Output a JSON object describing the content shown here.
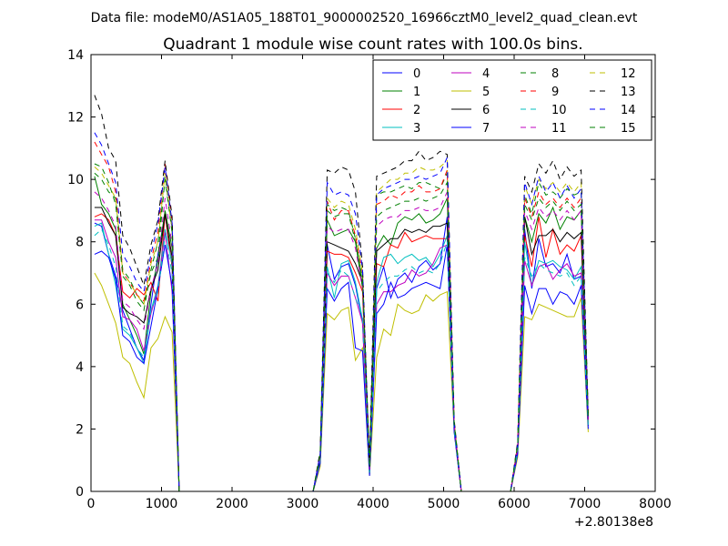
{
  "figure": {
    "suptitle": "Data file: modeM0/AS1A05_188T01_9000002520_16966cztM0_level2_quad_clean.evt"
  },
  "chart_data": {
    "type": "line",
    "title": "Quadrant 1 module wise count rates with 100.0s bins.",
    "xlabel": "",
    "ylabel": "",
    "x_offset_label": "+2.80138e8",
    "xlim": [
      0,
      8000
    ],
    "ylim": [
      0,
      14
    ],
    "x_ticks": [
      0,
      1000,
      2000,
      3000,
      4000,
      5000,
      6000,
      7000,
      8000
    ],
    "y_ticks": [
      0,
      2,
      4,
      6,
      8,
      10,
      12,
      14
    ],
    "grid": false,
    "legend_position": "top-right",
    "legend_columns": 4,
    "x": [
      50,
      150,
      250,
      350,
      450,
      550,
      650,
      750,
      850,
      950,
      1050,
      1150,
      1250,
      1350,
      1450,
      1550,
      1650,
      1750,
      1850,
      1950,
      2050,
      2150,
      2250,
      2350,
      2450,
      2550,
      2650,
      2750,
      2850,
      2950,
      3050,
      3150,
      3250,
      3350,
      3450,
      3550,
      3650,
      3750,
      3850,
      3950,
      4050,
      4150,
      4250,
      4350,
      4450,
      4550,
      4650,
      4750,
      4850,
      4950,
      5050,
      5150,
      5250,
      5350,
      5450,
      5550,
      5650,
      5750,
      5850,
      5950,
      6050,
      6150,
      6250,
      6350,
      6450,
      6550,
      6650,
      6750,
      6850,
      6950,
      7050
    ],
    "series": [
      {
        "name": "0",
        "color": "#0000ff",
        "dash": "solid",
        "values": [
          8.6,
          8.5,
          7.6,
          6.9,
          5.8,
          5.2,
          4.6,
          4.2,
          6.0,
          7.6,
          8.9,
          7.2,
          0,
          0,
          0,
          0,
          0,
          0,
          0,
          0,
          0,
          0,
          0,
          0,
          0,
          0,
          0,
          0,
          0,
          0,
          0,
          0,
          1.0,
          7.9,
          6.8,
          7.2,
          7.3,
          6.6,
          5.4,
          0.6,
          6.5,
          7.2,
          6.2,
          6.8,
          7.0,
          6.7,
          7.2,
          7.4,
          7.1,
          7.3,
          8.8,
          2.0,
          0,
          0,
          0,
          0,
          0,
          0,
          0,
          0,
          1.3,
          8.4,
          6.5,
          8.1,
          7.2,
          7.3,
          7.0,
          7.6,
          6.8,
          6.9,
          2.3
        ]
      },
      {
        "name": "1",
        "color": "#008000",
        "dash": "solid",
        "values": [
          10.1,
          9.2,
          8.9,
          8.4,
          6.0,
          5.5,
          5.0,
          4.4,
          6.4,
          7.4,
          9.0,
          7.8,
          0,
          0,
          0,
          0,
          0,
          0,
          0,
          0,
          0,
          0,
          0,
          0,
          0,
          0,
          0,
          0,
          0,
          0,
          0,
          0,
          1.1,
          8.7,
          8.2,
          8.3,
          8.4,
          8.0,
          6.5,
          0.7,
          7.8,
          8.2,
          7.9,
          8.6,
          8.8,
          8.7,
          8.9,
          8.6,
          8.7,
          8.9,
          9.4,
          2.1,
          0,
          0,
          0,
          0,
          0,
          0,
          0,
          0,
          1.4,
          8.8,
          8.0,
          8.9,
          8.6,
          9.1,
          8.4,
          8.8,
          8.7,
          9.0,
          2.3
        ]
      },
      {
        "name": "2",
        "color": "#ff0000",
        "dash": "solid",
        "values": [
          8.8,
          8.9,
          8.7,
          8.2,
          6.4,
          6.2,
          6.5,
          6.3,
          6.7,
          6.1,
          8.9,
          7.2,
          0,
          0,
          0,
          0,
          0,
          0,
          0,
          0,
          0,
          0,
          0,
          0,
          0,
          0,
          0,
          0,
          0,
          0,
          0,
          0,
          1.0,
          7.7,
          7.6,
          7.6,
          7.5,
          7.0,
          6.4,
          0.7,
          7.3,
          7.2,
          7.9,
          7.8,
          8.3,
          8.0,
          8.1,
          8.2,
          8.1,
          8.1,
          8.1,
          2.0,
          0,
          0,
          0,
          0,
          0,
          0,
          0,
          0,
          1.3,
          8.2,
          7.2,
          8.8,
          7.5,
          8.4,
          7.6,
          7.9,
          7.7,
          8.2,
          2.2
        ]
      },
      {
        "name": "3",
        "color": "#00bfbf",
        "dash": "solid",
        "values": [
          8.5,
          8.6,
          7.6,
          6.6,
          5.2,
          5.0,
          4.6,
          4.1,
          5.8,
          6.6,
          8.4,
          7.3,
          0,
          0,
          0,
          0,
          0,
          0,
          0,
          0,
          0,
          0,
          0,
          0,
          0,
          0,
          0,
          0,
          0,
          0,
          0,
          0,
          1.0,
          7.2,
          6.2,
          7.3,
          7.4,
          6.7,
          5.5,
          0.6,
          6.7,
          7.5,
          7.6,
          7.3,
          7.5,
          7.6,
          7.4,
          7.5,
          7.2,
          7.6,
          8.2,
          2.0,
          0,
          0,
          0,
          0,
          0,
          0,
          0,
          0,
          1.3,
          8.0,
          6.6,
          7.4,
          7.3,
          7.4,
          7.2,
          7.1,
          6.8,
          7.2,
          2.1
        ]
      },
      {
        "name": "4",
        "color": "#bf00bf",
        "dash": "solid",
        "values": [
          8.7,
          8.7,
          8.0,
          7.5,
          5.6,
          5.5,
          5.2,
          4.5,
          5.7,
          6.5,
          8.3,
          6.4,
          0,
          0,
          0,
          0,
          0,
          0,
          0,
          0,
          0,
          0,
          0,
          0,
          0,
          0,
          0,
          0,
          0,
          0,
          0,
          0,
          0.9,
          7.0,
          6.6,
          6.9,
          6.9,
          6.2,
          5.4,
          0.6,
          6.0,
          6.4,
          6.4,
          6.6,
          6.7,
          7.1,
          6.9,
          7.0,
          7.3,
          7.8,
          7.9,
          2.0,
          0,
          0,
          0,
          0,
          0,
          0,
          0,
          0,
          1.2,
          7.4,
          6.6,
          7.2,
          7.3,
          6.8,
          7.1,
          7.3,
          6.9,
          7.0,
          2.1
        ]
      },
      {
        "name": "5",
        "color": "#bfbf00",
        "dash": "solid",
        "values": [
          7.0,
          6.6,
          6.0,
          5.4,
          4.3,
          4.1,
          3.5,
          3.0,
          4.6,
          4.9,
          5.6,
          5.1,
          0,
          0,
          0,
          0,
          0,
          0,
          0,
          0,
          0,
          0,
          0,
          0,
          0,
          0,
          0,
          0,
          0,
          0,
          0,
          0,
          0.8,
          5.7,
          5.5,
          5.8,
          5.9,
          4.2,
          4.6,
          0.5,
          4.3,
          5.2,
          5.0,
          6.0,
          5.8,
          5.7,
          5.8,
          6.3,
          6.1,
          6.3,
          6.4,
          1.9,
          0,
          0,
          0,
          0,
          0,
          0,
          0,
          0,
          1.1,
          5.6,
          5.5,
          6.0,
          5.9,
          5.8,
          5.7,
          5.6,
          5.6,
          6.2,
          1.9
        ]
      },
      {
        "name": "6",
        "color": "#000000",
        "dash": "solid",
        "values": [
          9.1,
          9.1,
          8.6,
          8.2,
          5.9,
          5.7,
          5.6,
          5.4,
          6.5,
          7.1,
          8.9,
          7.5,
          0,
          0,
          0,
          0,
          0,
          0,
          0,
          0,
          0,
          0,
          0,
          0,
          0,
          0,
          0,
          0,
          0,
          0,
          0,
          0,
          1.1,
          8.0,
          7.9,
          7.8,
          7.7,
          7.3,
          6.7,
          0.8,
          7.7,
          7.9,
          8.1,
          8.1,
          8.4,
          8.3,
          8.4,
          8.3,
          8.5,
          8.5,
          8.6,
          2.1,
          0,
          0,
          0,
          0,
          0,
          0,
          0,
          0,
          1.4,
          8.8,
          7.6,
          8.2,
          8.2,
          8.4,
          8.0,
          8.3,
          8.1,
          8.3,
          2.3
        ]
      },
      {
        "name": "7",
        "color": "#0000ff",
        "dash": "solid",
        "values": [
          7.6,
          7.7,
          7.5,
          6.8,
          5.0,
          4.8,
          4.3,
          4.1,
          5.3,
          6.5,
          7.9,
          6.6,
          0,
          0,
          0,
          0,
          0,
          0,
          0,
          0,
          0,
          0,
          0,
          0,
          0,
          0,
          0,
          0,
          0,
          0,
          0,
          0,
          0.9,
          6.5,
          6.1,
          6.5,
          6.7,
          4.6,
          4.5,
          0.5,
          5.7,
          6.0,
          6.7,
          6.2,
          6.3,
          6.5,
          6.6,
          6.7,
          6.6,
          6.5,
          7.9,
          1.9,
          0,
          0,
          0,
          0,
          0,
          0,
          0,
          0,
          1.2,
          6.6,
          5.7,
          6.5,
          6.5,
          6.0,
          6.4,
          6.3,
          6.0,
          6.6,
          2.0
        ]
      },
      {
        "name": "8",
        "color": "#008000",
        "dash": "dashed",
        "values": [
          10.2,
          10.0,
          9.6,
          9.4,
          7.1,
          6.8,
          6.3,
          6.0,
          7.0,
          7.5,
          10.1,
          8.4,
          0,
          0,
          0,
          0,
          0,
          0,
          0,
          0,
          0,
          0,
          0,
          0,
          0,
          0,
          0,
          0,
          0,
          0,
          0,
          0,
          1.2,
          9.2,
          9.0,
          9.1,
          9.0,
          8.1,
          6.7,
          0.8,
          9.5,
          9.6,
          9.6,
          9.7,
          9.8,
          9.7,
          9.9,
          9.9,
          9.8,
          9.7,
          10.2,
          2.2,
          0,
          0,
          0,
          0,
          0,
          0,
          0,
          0,
          1.5,
          9.5,
          8.9,
          9.9,
          9.5,
          9.6,
          9.4,
          9.7,
          9.5,
          9.6,
          2.4
        ]
      },
      {
        "name": "9",
        "color": "#ff0000",
        "dash": "dashed",
        "values": [
          11.2,
          10.8,
          10.4,
          9.6,
          7.0,
          6.7,
          6.3,
          6.1,
          7.4,
          8.3,
          10.5,
          8.6,
          0,
          0,
          0,
          0,
          0,
          0,
          0,
          0,
          0,
          0,
          0,
          0,
          0,
          0,
          0,
          0,
          0,
          0,
          0,
          0,
          1.2,
          9.3,
          8.7,
          9.0,
          9.0,
          8.2,
          7.0,
          0.8,
          9.2,
          9.3,
          9.5,
          9.4,
          9.6,
          9.6,
          9.8,
          9.6,
          9.6,
          9.7,
          10.3,
          2.2,
          0,
          0,
          0,
          0,
          0,
          0,
          0,
          0,
          1.5,
          9.4,
          8.8,
          9.6,
          9.2,
          9.4,
          9.1,
          9.4,
          9.1,
          9.4,
          2.4
        ]
      },
      {
        "name": "10",
        "color": "#00bfbf",
        "dash": "dashed",
        "values": [
          8.2,
          8.4,
          7.9,
          7.2,
          5.3,
          5.1,
          4.6,
          4.3,
          5.8,
          6.4,
          8.2,
          7.0,
          0,
          0,
          0,
          0,
          0,
          0,
          0,
          0,
          0,
          0,
          0,
          0,
          0,
          0,
          0,
          0,
          0,
          0,
          0,
          0,
          1.0,
          7.0,
          6.7,
          7.1,
          6.9,
          6.2,
          5.6,
          0.6,
          6.4,
          6.7,
          6.9,
          6.9,
          7.1,
          7.2,
          7.0,
          7.1,
          7.0,
          7.3,
          8.0,
          2.0,
          0,
          0,
          0,
          0,
          0,
          0,
          0,
          0,
          1.3,
          7.5,
          6.9,
          7.3,
          7.1,
          7.0,
          6.9,
          7.0,
          6.6,
          6.9,
          2.1
        ]
      },
      {
        "name": "11",
        "color": "#bf00bf",
        "dash": "dashed",
        "values": [
          9.6,
          9.4,
          9.0,
          8.5,
          6.1,
          5.9,
          5.5,
          5.2,
          6.5,
          7.3,
          9.4,
          7.9,
          0,
          0,
          0,
          0,
          0,
          0,
          0,
          0,
          0,
          0,
          0,
          0,
          0,
          0,
          0,
          0,
          0,
          0,
          0,
          0,
          1.1,
          8.5,
          8.3,
          8.4,
          8.4,
          7.8,
          6.5,
          0.7,
          8.5,
          8.7,
          8.8,
          8.8,
          9.0,
          9.0,
          9.1,
          9.0,
          9.0,
          9.1,
          9.6,
          2.1,
          0,
          0,
          0,
          0,
          0,
          0,
          0,
          0,
          1.4,
          9.0,
          8.4,
          9.1,
          8.8,
          9.0,
          8.7,
          9.0,
          8.7,
          9.0,
          2.3
        ]
      },
      {
        "name": "12",
        "color": "#bfbf00",
        "dash": "dashed",
        "values": [
          10.4,
          10.2,
          9.8,
          9.4,
          7.0,
          6.7,
          6.3,
          6.0,
          7.3,
          8.0,
          10.2,
          8.4,
          0,
          0,
          0,
          0,
          0,
          0,
          0,
          0,
          0,
          0,
          0,
          0,
          0,
          0,
          0,
          0,
          0,
          0,
          0,
          0,
          1.2,
          9.4,
          9.1,
          9.3,
          9.2,
          8.4,
          7.0,
          0.8,
          9.6,
          9.8,
          10.0,
          10.0,
          10.2,
          10.2,
          10.4,
          10.3,
          10.3,
          10.4,
          10.6,
          2.2,
          0,
          0,
          0,
          0,
          0,
          0,
          0,
          0,
          1.5,
          9.8,
          9.2,
          10.0,
          9.7,
          9.9,
          9.6,
          9.9,
          9.6,
          9.9,
          2.4
        ]
      },
      {
        "name": "13",
        "color": "#000000",
        "dash": "dashed",
        "values": [
          12.7,
          12.1,
          11.0,
          10.6,
          8.2,
          7.8,
          7.2,
          6.6,
          7.9,
          8.7,
          10.6,
          8.8,
          0,
          0,
          0,
          0,
          0,
          0,
          0,
          0,
          0,
          0,
          0,
          0,
          0,
          0,
          0,
          0,
          0,
          0,
          0,
          0,
          1.3,
          10.3,
          10.2,
          10.4,
          10.3,
          9.6,
          7.2,
          0.8,
          10.1,
          10.2,
          10.3,
          10.4,
          10.6,
          10.6,
          10.9,
          10.6,
          10.7,
          10.9,
          10.8,
          2.3,
          0,
          0,
          0,
          0,
          0,
          0,
          0,
          0,
          1.6,
          10.1,
          9.6,
          10.5,
          10.2,
          10.6,
          10.0,
          10.4,
          10.1,
          10.3,
          2.5
        ]
      },
      {
        "name": "14",
        "color": "#0000ff",
        "dash": "dashed",
        "values": [
          11.5,
          11.1,
          10.5,
          9.9,
          7.6,
          7.2,
          6.7,
          6.4,
          7.6,
          8.6,
          10.4,
          8.6,
          0,
          0,
          0,
          0,
          0,
          0,
          0,
          0,
          0,
          0,
          0,
          0,
          0,
          0,
          0,
          0,
          0,
          0,
          0,
          0,
          1.2,
          9.9,
          9.5,
          9.6,
          9.5,
          8.9,
          7.1,
          0.8,
          9.5,
          9.7,
          9.8,
          9.9,
          10.0,
          10.0,
          10.1,
          10.0,
          10.1,
          10.2,
          10.7,
          2.2,
          0,
          0,
          0,
          0,
          0,
          0,
          0,
          0,
          1.5,
          9.9,
          9.2,
          10.1,
          9.6,
          9.9,
          9.4,
          9.8,
          9.4,
          9.7,
          2.4
        ]
      },
      {
        "name": "15",
        "color": "#008000",
        "dash": "dashed",
        "values": [
          10.5,
          10.4,
          9.9,
          9.2,
          6.9,
          6.6,
          6.1,
          5.8,
          7.1,
          8.0,
          10.0,
          8.3,
          0,
          0,
          0,
          0,
          0,
          0,
          0,
          0,
          0,
          0,
          0,
          0,
          0,
          0,
          0,
          0,
          0,
          0,
          0,
          0,
          1.2,
          9.0,
          8.8,
          8.9,
          8.9,
          8.0,
          6.8,
          0.8,
          8.8,
          9.0,
          9.1,
          9.2,
          9.3,
          9.3,
          9.4,
          9.3,
          9.4,
          9.5,
          9.9,
          2.2,
          0,
          0,
          0,
          0,
          0,
          0,
          0,
          0,
          1.5,
          9.2,
          8.7,
          9.4,
          9.1,
          9.3,
          9.0,
          9.3,
          9.0,
          9.2,
          2.3
        ]
      }
    ]
  }
}
